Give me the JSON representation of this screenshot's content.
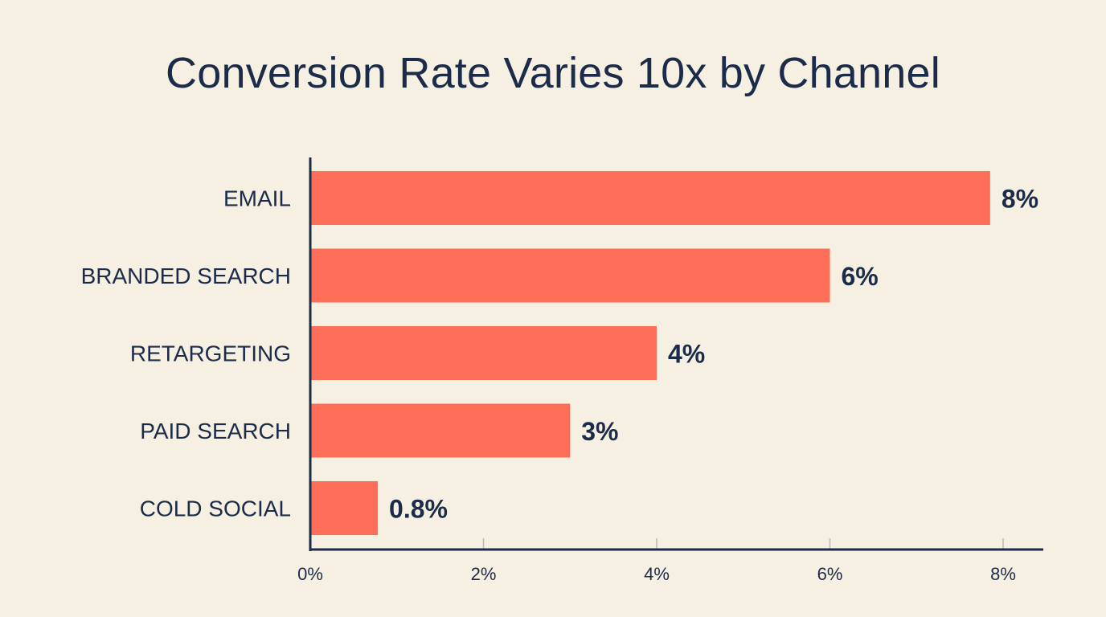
{
  "chart_data": {
    "type": "bar",
    "orientation": "horizontal",
    "title": "Conversion Rate Varies 10x by Channel",
    "categories": [
      "EMAIL",
      "BRANDED SEARCH",
      "RETARGETING",
      "PAID SEARCH",
      "COLD SOCIAL"
    ],
    "values": [
      7.85,
      6.0,
      4.0,
      3.0,
      0.78
    ],
    "value_labels": [
      "8%",
      "6%",
      "4%",
      "3%",
      "0.8%"
    ],
    "xlim": [
      0,
      8.5
    ],
    "xticks": [
      0,
      2,
      4,
      6,
      8
    ],
    "xtick_labels": [
      "0%",
      "2%",
      "4%",
      "6%",
      "8%"
    ],
    "xlabel": "",
    "ylabel": "",
    "grid": false,
    "colors": {
      "bar": "#fe6d57",
      "text": "#1c2b4a",
      "axis": "#1c2b4a",
      "background": "#f5f0e1"
    }
  }
}
